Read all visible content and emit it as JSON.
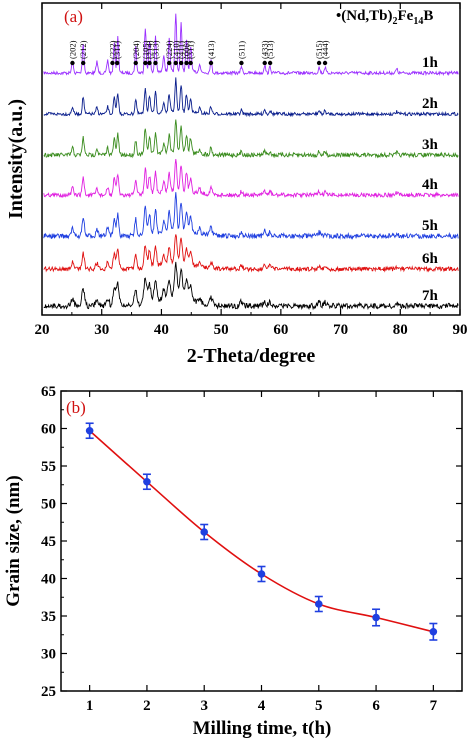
{
  "chart_data": [
    {
      "panel": "(a)",
      "type": "line",
      "xlabel": "2-Theta/degree",
      "ylabel": "Intensity(a.u.)",
      "xlim": [
        20,
        90
      ],
      "xticks": [
        20,
        30,
        40,
        50,
        60,
        70,
        80,
        90
      ],
      "legend": {
        "prefix": "•(Nd,Tb)",
        "sub1": "2",
        "mid": "Fe",
        "sub2": "14",
        "suffix": "B",
        "placement": "top-right"
      },
      "peaks": [
        {
          "label": "(202)",
          "x": 25.1
        },
        {
          "label": "(212)",
          "x": 26.9
        },
        {
          "label": "(222)",
          "x": 31.8
        },
        {
          "label": "(311)",
          "x": 32.6
        },
        {
          "label": "(204)",
          "x": 35.7
        },
        {
          "label": "(105)",
          "x": 37.3
        },
        {
          "label": "(214)",
          "x": 38.0
        },
        {
          "label": "(313)",
          "x": 39.0
        },
        {
          "label": "(224)",
          "x": 41.3
        },
        {
          "label": "(410)",
          "x": 42.4
        },
        {
          "label": "(411)",
          "x": 43.3
        },
        {
          "label": "(006)",
          "x": 44.2
        },
        {
          "label": "(311)",
          "x": 44.9
        },
        {
          "label": "(413)",
          "x": 48.3
        },
        {
          "label": "(511)",
          "x": 53.4
        },
        {
          "label": "(433)",
          "x": 57.3
        },
        {
          "label": "(513)",
          "x": 58.2
        },
        {
          "label": "(515)",
          "x": 66.4
        },
        {
          "label": "(444)",
          "x": 67.4
        }
      ],
      "series": [
        {
          "name": "1h",
          "color": "#9b30ff"
        },
        {
          "name": "2h",
          "color": "#0a1e8c"
        },
        {
          "name": "3h",
          "color": "#3a8c1e"
        },
        {
          "name": "4h",
          "color": "#e020e0"
        },
        {
          "name": "5h",
          "color": "#1f3fe0"
        },
        {
          "name": "6h",
          "color": "#e01010"
        },
        {
          "name": "7h",
          "color": "#000000"
        }
      ]
    },
    {
      "panel": "(b)",
      "type": "line",
      "xlabel": "Milling time, t(h)",
      "ylabel": "Grain size, (nm)",
      "xlim": [
        0.5,
        7.5
      ],
      "ylim": [
        25,
        65
      ],
      "xticks": [
        1,
        2,
        3,
        4,
        5,
        6,
        7
      ],
      "yticks": [
        25,
        30,
        35,
        40,
        45,
        50,
        55,
        60,
        65
      ],
      "x": [
        1,
        2,
        3,
        4,
        5,
        6,
        7
      ],
      "series": [
        {
          "values": [
            59.7,
            52.9,
            46.2,
            40.6,
            36.6,
            34.8,
            32.9
          ],
          "error": [
            1.0,
            1.0,
            1.0,
            1.0,
            1.0,
            1.1,
            1.1
          ],
          "line_color": "#e01010",
          "marker_color": "#1f3fe0"
        }
      ]
    }
  ]
}
